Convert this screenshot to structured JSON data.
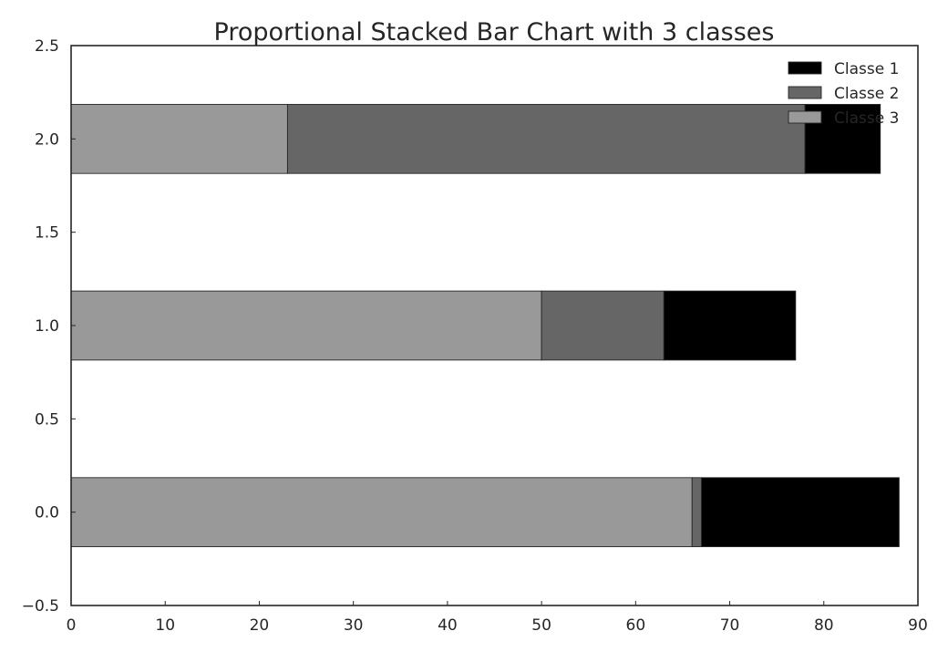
{
  "chart_data": {
    "type": "bar",
    "orientation": "horizontal",
    "stacked": true,
    "title": "Proportional Stacked Bar Chart with 3 classes",
    "xlabel": "",
    "ylabel": "",
    "xlim": [
      0,
      90
    ],
    "ylim": [
      -0.5,
      2.5
    ],
    "xticks": [
      0,
      10,
      20,
      30,
      40,
      50,
      60,
      70,
      80,
      90
    ],
    "xtick_labels": [
      "0",
      "10",
      "20",
      "30",
      "40",
      "50",
      "60",
      "70",
      "80",
      "90"
    ],
    "yticks": [
      -0.5,
      0.0,
      0.5,
      1.0,
      1.5,
      2.0,
      2.5
    ],
    "ytick_labels": [
      "−0.5",
      "0.0",
      "0.5",
      "1.0",
      "1.5",
      "2.0",
      "2.5"
    ],
    "categories": [
      0,
      1,
      2
    ],
    "grid": false,
    "legend_position": "top-right",
    "series": [
      {
        "name": "Classe 3",
        "color": "#999999",
        "values": [
          66,
          50,
          23
        ]
      },
      {
        "name": "Classe 2",
        "color": "#666666",
        "values": [
          1,
          13,
          55
        ]
      },
      {
        "name": "Classe 1",
        "color": "#000000",
        "values": [
          21,
          14,
          8
        ]
      }
    ],
    "legend_order": [
      "Classe 1",
      "Classe 2",
      "Classe 3"
    ]
  }
}
